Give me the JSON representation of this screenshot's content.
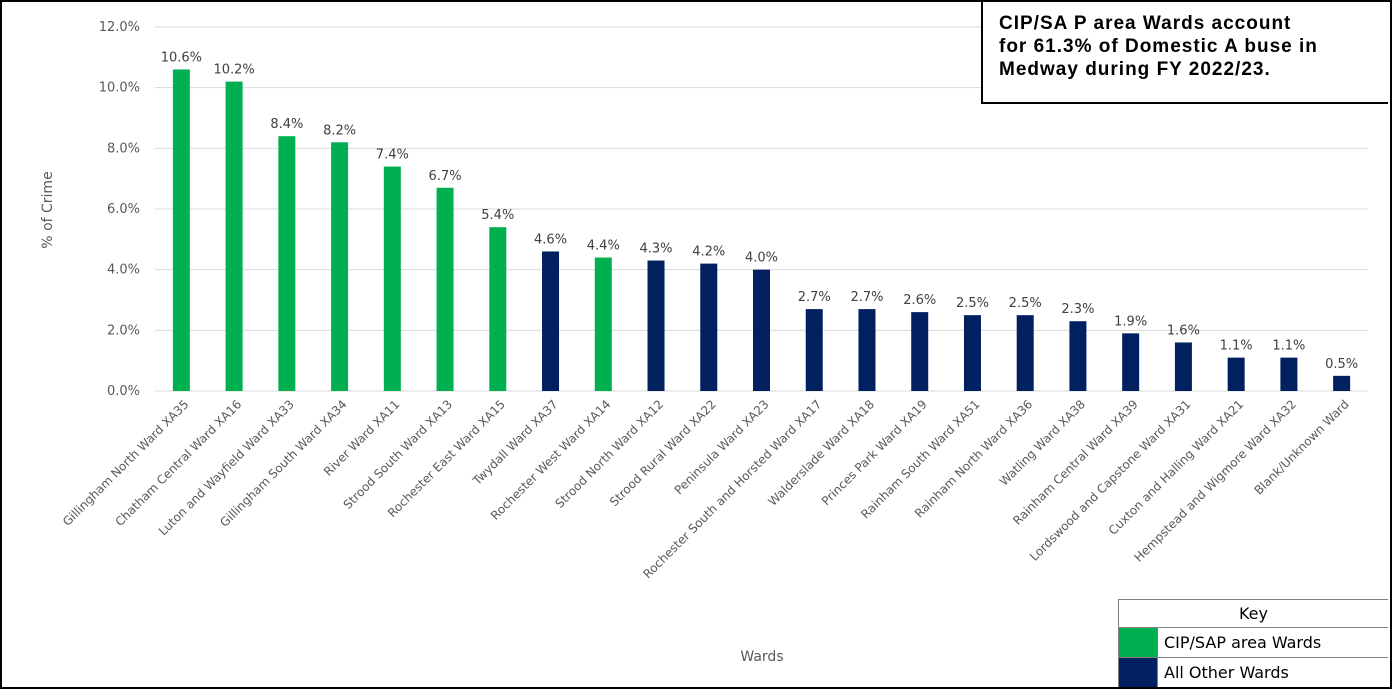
{
  "colors": {
    "cip_sap": "#00b050",
    "other": "#002060",
    "grid": "#d9d9d9",
    "axis_text": "#595959"
  },
  "callout": {
    "lines": [
      "CIP/SA P  area Wards account",
      "for 61.3% of Domestic A buse in",
      "Medway during FY 2022/23."
    ]
  },
  "key": {
    "title": "Key",
    "items": [
      {
        "label": "CIP/SAP area Wards",
        "color": "#00b050"
      },
      {
        "label": "All Other Wards",
        "color": "#002060"
      }
    ]
  },
  "chart_data": {
    "type": "bar",
    "xlabel": "Wards",
    "ylabel": "% of Crime",
    "ylim": [
      0,
      12
    ],
    "yticks": [
      "0.0%",
      "2.0%",
      "4.0%",
      "6.0%",
      "8.0%",
      "10.0%",
      "12.0%"
    ],
    "grid": true,
    "legend": "bottom-right",
    "categories": [
      "Gillingham North Ward XA35",
      "Chatham Central Ward XA16",
      "Luton and Wayfield Ward XA33",
      "Gillingham South Ward XA34",
      "River Ward XA11",
      "Strood South Ward XA13",
      "Rochester East Ward XA15",
      "Twydall Ward XA37",
      "Rochester West Ward XA14",
      "Strood North Ward XA12",
      "Strood Rural Ward XA22",
      "Peninsula Ward XA23",
      "Rochester South and Horsted Ward XA17",
      "Walderslade Ward XA18",
      "Princes Park Ward XA19",
      "Rainham South Ward XA51",
      "Rainham North Ward XA36",
      "Watling Ward XA38",
      "Rainham Central Ward XA39",
      "Lordswood and Capstone Ward XA31",
      "Cuxton and Halling Ward XA21",
      "Hempstead and Wigmore Ward XA32",
      "Blank/Unknown Ward"
    ],
    "values": [
      10.6,
      10.2,
      8.4,
      8.2,
      7.4,
      6.7,
      5.4,
      4.6,
      4.4,
      4.3,
      4.2,
      4.0,
      2.7,
      2.7,
      2.6,
      2.5,
      2.5,
      2.3,
      1.9,
      1.6,
      1.1,
      1.1,
      0.5
    ],
    "labels": [
      "10.6%",
      "10.2%",
      "8.4%",
      "8.2%",
      "7.4%",
      "6.7%",
      "5.4%",
      "4.6%",
      "4.4%",
      "4.3%",
      "4.2%",
      "4.0%",
      "2.7%",
      "2.7%",
      "2.6%",
      "2.5%",
      "2.5%",
      "2.3%",
      "1.9%",
      "1.6%",
      "1.1%",
      "1.1%",
      "0.5%"
    ],
    "groups": [
      "cip_sap",
      "cip_sap",
      "cip_sap",
      "cip_sap",
      "cip_sap",
      "cip_sap",
      "cip_sap",
      "other",
      "cip_sap",
      "other",
      "other",
      "other",
      "other",
      "other",
      "other",
      "other",
      "other",
      "other",
      "other",
      "other",
      "other",
      "other",
      "other"
    ]
  }
}
